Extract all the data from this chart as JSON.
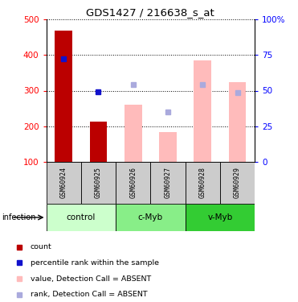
{
  "title": "GDS1427 / 216638_s_at",
  "samples": [
    "GSM60924",
    "GSM60925",
    "GSM60926",
    "GSM60927",
    "GSM60928",
    "GSM60929"
  ],
  "groups": [
    {
      "label": "control",
      "indices": [
        0,
        1
      ],
      "color": "#ccffcc"
    },
    {
      "label": "c-Myb",
      "indices": [
        2,
        3
      ],
      "color": "#88ee88"
    },
    {
      "label": "v-Myb",
      "indices": [
        4,
        5
      ],
      "color": "#33cc33"
    }
  ],
  "infection_label": "infection",
  "bar_bottom": 100,
  "ylim_left": [
    100,
    500
  ],
  "ylim_right": [
    0,
    100
  ],
  "yticks_left": [
    100,
    200,
    300,
    400,
    500
  ],
  "yticks_right": [
    0,
    25,
    50,
    75,
    100
  ],
  "yticklabels_right": [
    "0",
    "25",
    "50",
    "75",
    "100%"
  ],
  "red_bars": [
    {
      "idx": 0,
      "value": 468
    },
    {
      "idx": 1,
      "value": 212
    }
  ],
  "blue_squares": [
    {
      "idx": 0,
      "value": 390
    },
    {
      "idx": 1,
      "value": 297
    }
  ],
  "pink_bars": [
    {
      "idx": 2,
      "value": 260
    },
    {
      "idx": 3,
      "value": 184
    },
    {
      "idx": 4,
      "value": 386
    },
    {
      "idx": 5,
      "value": 324
    }
  ],
  "light_blue_squares": [
    {
      "idx": 2,
      "value": 316
    },
    {
      "idx": 3,
      "value": 240
    },
    {
      "idx": 4,
      "value": 318
    },
    {
      "idx": 5,
      "value": 295
    }
  ],
  "bar_width": 0.5,
  "red_bar_color": "#bb0000",
  "pink_bar_color": "#ffbbbb",
  "blue_square_color": "#1111cc",
  "light_blue_square_color": "#aaaadd",
  "legend": [
    {
      "color": "#bb0000",
      "label": "count"
    },
    {
      "color": "#1111cc",
      "label": "percentile rank within the sample"
    },
    {
      "color": "#ffbbbb",
      "label": "value, Detection Call = ABSENT"
    },
    {
      "color": "#aaaadd",
      "label": "rank, Detection Call = ABSENT"
    }
  ]
}
